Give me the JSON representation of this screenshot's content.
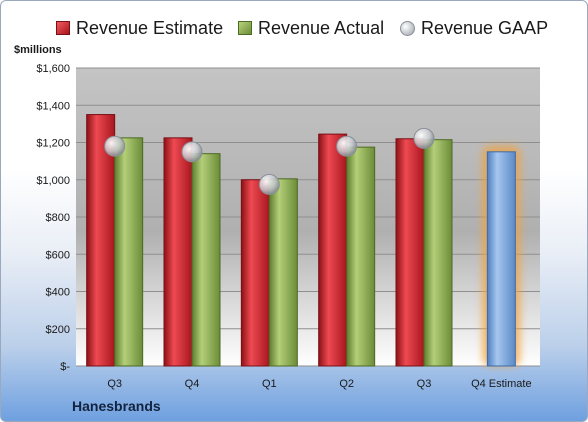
{
  "chart_data": {
    "type": "bar",
    "title": "",
    "ylabel": "$millions",
    "xlabel": "",
    "ylim": [
      0,
      1600
    ],
    "yticks": [
      {
        "value": 0,
        "label": "$-"
      },
      {
        "value": 200,
        "label": "$200"
      },
      {
        "value": 400,
        "label": "$400"
      },
      {
        "value": 600,
        "label": "$600"
      },
      {
        "value": 800,
        "label": "$800"
      },
      {
        "value": 1000,
        "label": "$1,000"
      },
      {
        "value": 1200,
        "label": "$1,200"
      },
      {
        "value": 1400,
        "label": "$1,400"
      },
      {
        "value": 1600,
        "label": "$1,600"
      }
    ],
    "categories": [
      "Q3",
      "Q4",
      "Q1",
      "Q2",
      "Q3",
      "Q4 Estimate"
    ],
    "series": [
      {
        "name": "Revenue Estimate",
        "kind": "bar",
        "color": "#c8202a",
        "values": [
          1350,
          1225,
          1000,
          1245,
          1220,
          null
        ]
      },
      {
        "name": "Revenue Actual",
        "kind": "bar",
        "color": "#86a94e",
        "values": [
          1225,
          1140,
          1005,
          1175,
          1215,
          null
        ]
      },
      {
        "name": "Revenue GAAP",
        "kind": "marker",
        "color": "#b8bcc2",
        "values": [
          1180,
          1150,
          975,
          1180,
          1222,
          null
        ]
      },
      {
        "name": "Q4 Estimate",
        "kind": "bar",
        "color": "#6e9bd6",
        "values": [
          null,
          null,
          null,
          null,
          null,
          1150
        ]
      }
    ],
    "grid": true,
    "legend_position": "top"
  },
  "company": "Hanesbrands"
}
